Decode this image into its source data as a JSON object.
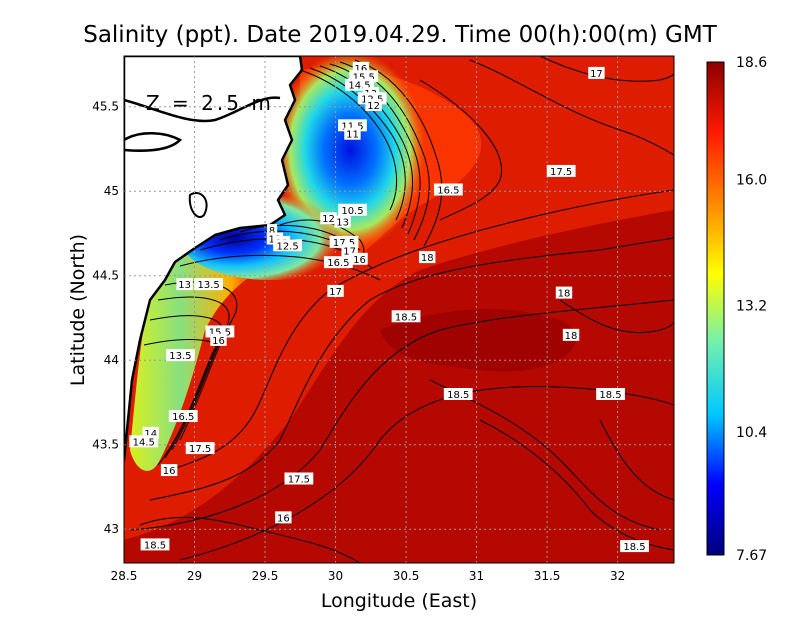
{
  "chart_data": {
    "type": "heatmap",
    "title": "Salinity (ppt). Date 2019.04.29. Time 00(h):00(m) GMT",
    "xlabel": "Longitude (East)",
    "ylabel": "Latitude (North)",
    "xlim": [
      28.5,
      32.4
    ],
    "ylim": [
      42.8,
      45.8
    ],
    "x_ticks": [
      "28.5",
      "29",
      "29.5",
      "30",
      "30.5",
      "31",
      "31.5",
      "32"
    ],
    "y_ticks": [
      "43",
      "43.5",
      "44",
      "44.5",
      "45",
      "45.5"
    ],
    "annotation": "Z = 2.5 m",
    "grid": true,
    "colorbar": {
      "min": 7.67,
      "max": 18.6,
      "ticks": [
        "18.6",
        "16.0",
        "13.2",
        "10.4",
        "7.67"
      ],
      "colors": [
        "#00007a",
        "#0000ff",
        "#00c8ff",
        "#70f0b0",
        "#ffff00",
        "#ff8800",
        "#ff1a00",
        "#8c0000"
      ]
    },
    "contour_labels": [
      {
        "text": "16",
        "lon": 30.18,
        "lat": 45.73
      },
      {
        "text": "15.5",
        "lon": 30.2,
        "lat": 45.68
      },
      {
        "text": "14.5",
        "lon": 30.17,
        "lat": 45.63
      },
      {
        "text": "13",
        "lon": 30.25,
        "lat": 45.58
      },
      {
        "text": "12.5",
        "lon": 30.26,
        "lat": 45.55
      },
      {
        "text": "12",
        "lon": 30.27,
        "lat": 45.51
      },
      {
        "text": "11.5",
        "lon": 30.12,
        "lat": 45.39
      },
      {
        "text": "11",
        "lon": 30.12,
        "lat": 45.34
      },
      {
        "text": "10.5",
        "lon": 30.12,
        "lat": 44.89
      },
      {
        "text": "12",
        "lon": 29.95,
        "lat": 44.84
      },
      {
        "text": "13",
        "lon": 30.05,
        "lat": 44.82
      },
      {
        "text": "8",
        "lon": 29.55,
        "lat": 44.77
      },
      {
        "text": "11",
        "lon": 29.57,
        "lat": 44.72
      },
      {
        "text": "11",
        "lon": 29.62,
        "lat": 44.7
      },
      {
        "text": "12.5",
        "lon": 29.66,
        "lat": 44.68
      },
      {
        "text": "17.5",
        "lon": 30.06,
        "lat": 44.7
      },
      {
        "text": "17",
        "lon": 30.1,
        "lat": 44.65
      },
      {
        "text": "16.5",
        "lon": 30.02,
        "lat": 44.58
      },
      {
        "text": "16",
        "lon": 30.17,
        "lat": 44.6
      },
      {
        "text": "13",
        "lon": 28.93,
        "lat": 44.45
      },
      {
        "text": "13.5",
        "lon": 29.1,
        "lat": 44.45
      },
      {
        "text": "15.5",
        "lon": 29.18,
        "lat": 44.17
      },
      {
        "text": "16",
        "lon": 29.17,
        "lat": 44.12
      },
      {
        "text": "13.5",
        "lon": 28.9,
        "lat": 44.03
      },
      {
        "text": "16.5",
        "lon": 28.92,
        "lat": 43.67
      },
      {
        "text": "14",
        "lon": 28.69,
        "lat": 43.57
      },
      {
        "text": "14.5",
        "lon": 28.64,
        "lat": 43.52
      },
      {
        "text": "17.5",
        "lon": 29.04,
        "lat": 43.48
      },
      {
        "text": "16",
        "lon": 28.82,
        "lat": 43.35
      },
      {
        "text": "17.5",
        "lon": 29.74,
        "lat": 43.3
      },
      {
        "text": "16",
        "lon": 29.63,
        "lat": 43.07
      },
      {
        "text": "18.5",
        "lon": 28.72,
        "lat": 42.91
      },
      {
        "text": "17",
        "lon": 31.85,
        "lat": 45.7
      },
      {
        "text": "16.5",
        "lon": 30.8,
        "lat": 45.01
      },
      {
        "text": "17.5",
        "lon": 31.6,
        "lat": 45.12
      },
      {
        "text": "18",
        "lon": 30.65,
        "lat": 44.61
      },
      {
        "text": "17",
        "lon": 30.0,
        "lat": 44.41
      },
      {
        "text": "18.5",
        "lon": 30.5,
        "lat": 44.26
      },
      {
        "text": "18",
        "lon": 31.62,
        "lat": 44.4
      },
      {
        "text": "18",
        "lon": 31.67,
        "lat": 44.15
      },
      {
        "text": "18.5",
        "lon": 30.87,
        "lat": 43.8
      },
      {
        "text": "18.5",
        "lon": 31.95,
        "lat": 43.8
      },
      {
        "text": "18.5",
        "lon": 32.12,
        "lat": 42.9
      }
    ]
  }
}
